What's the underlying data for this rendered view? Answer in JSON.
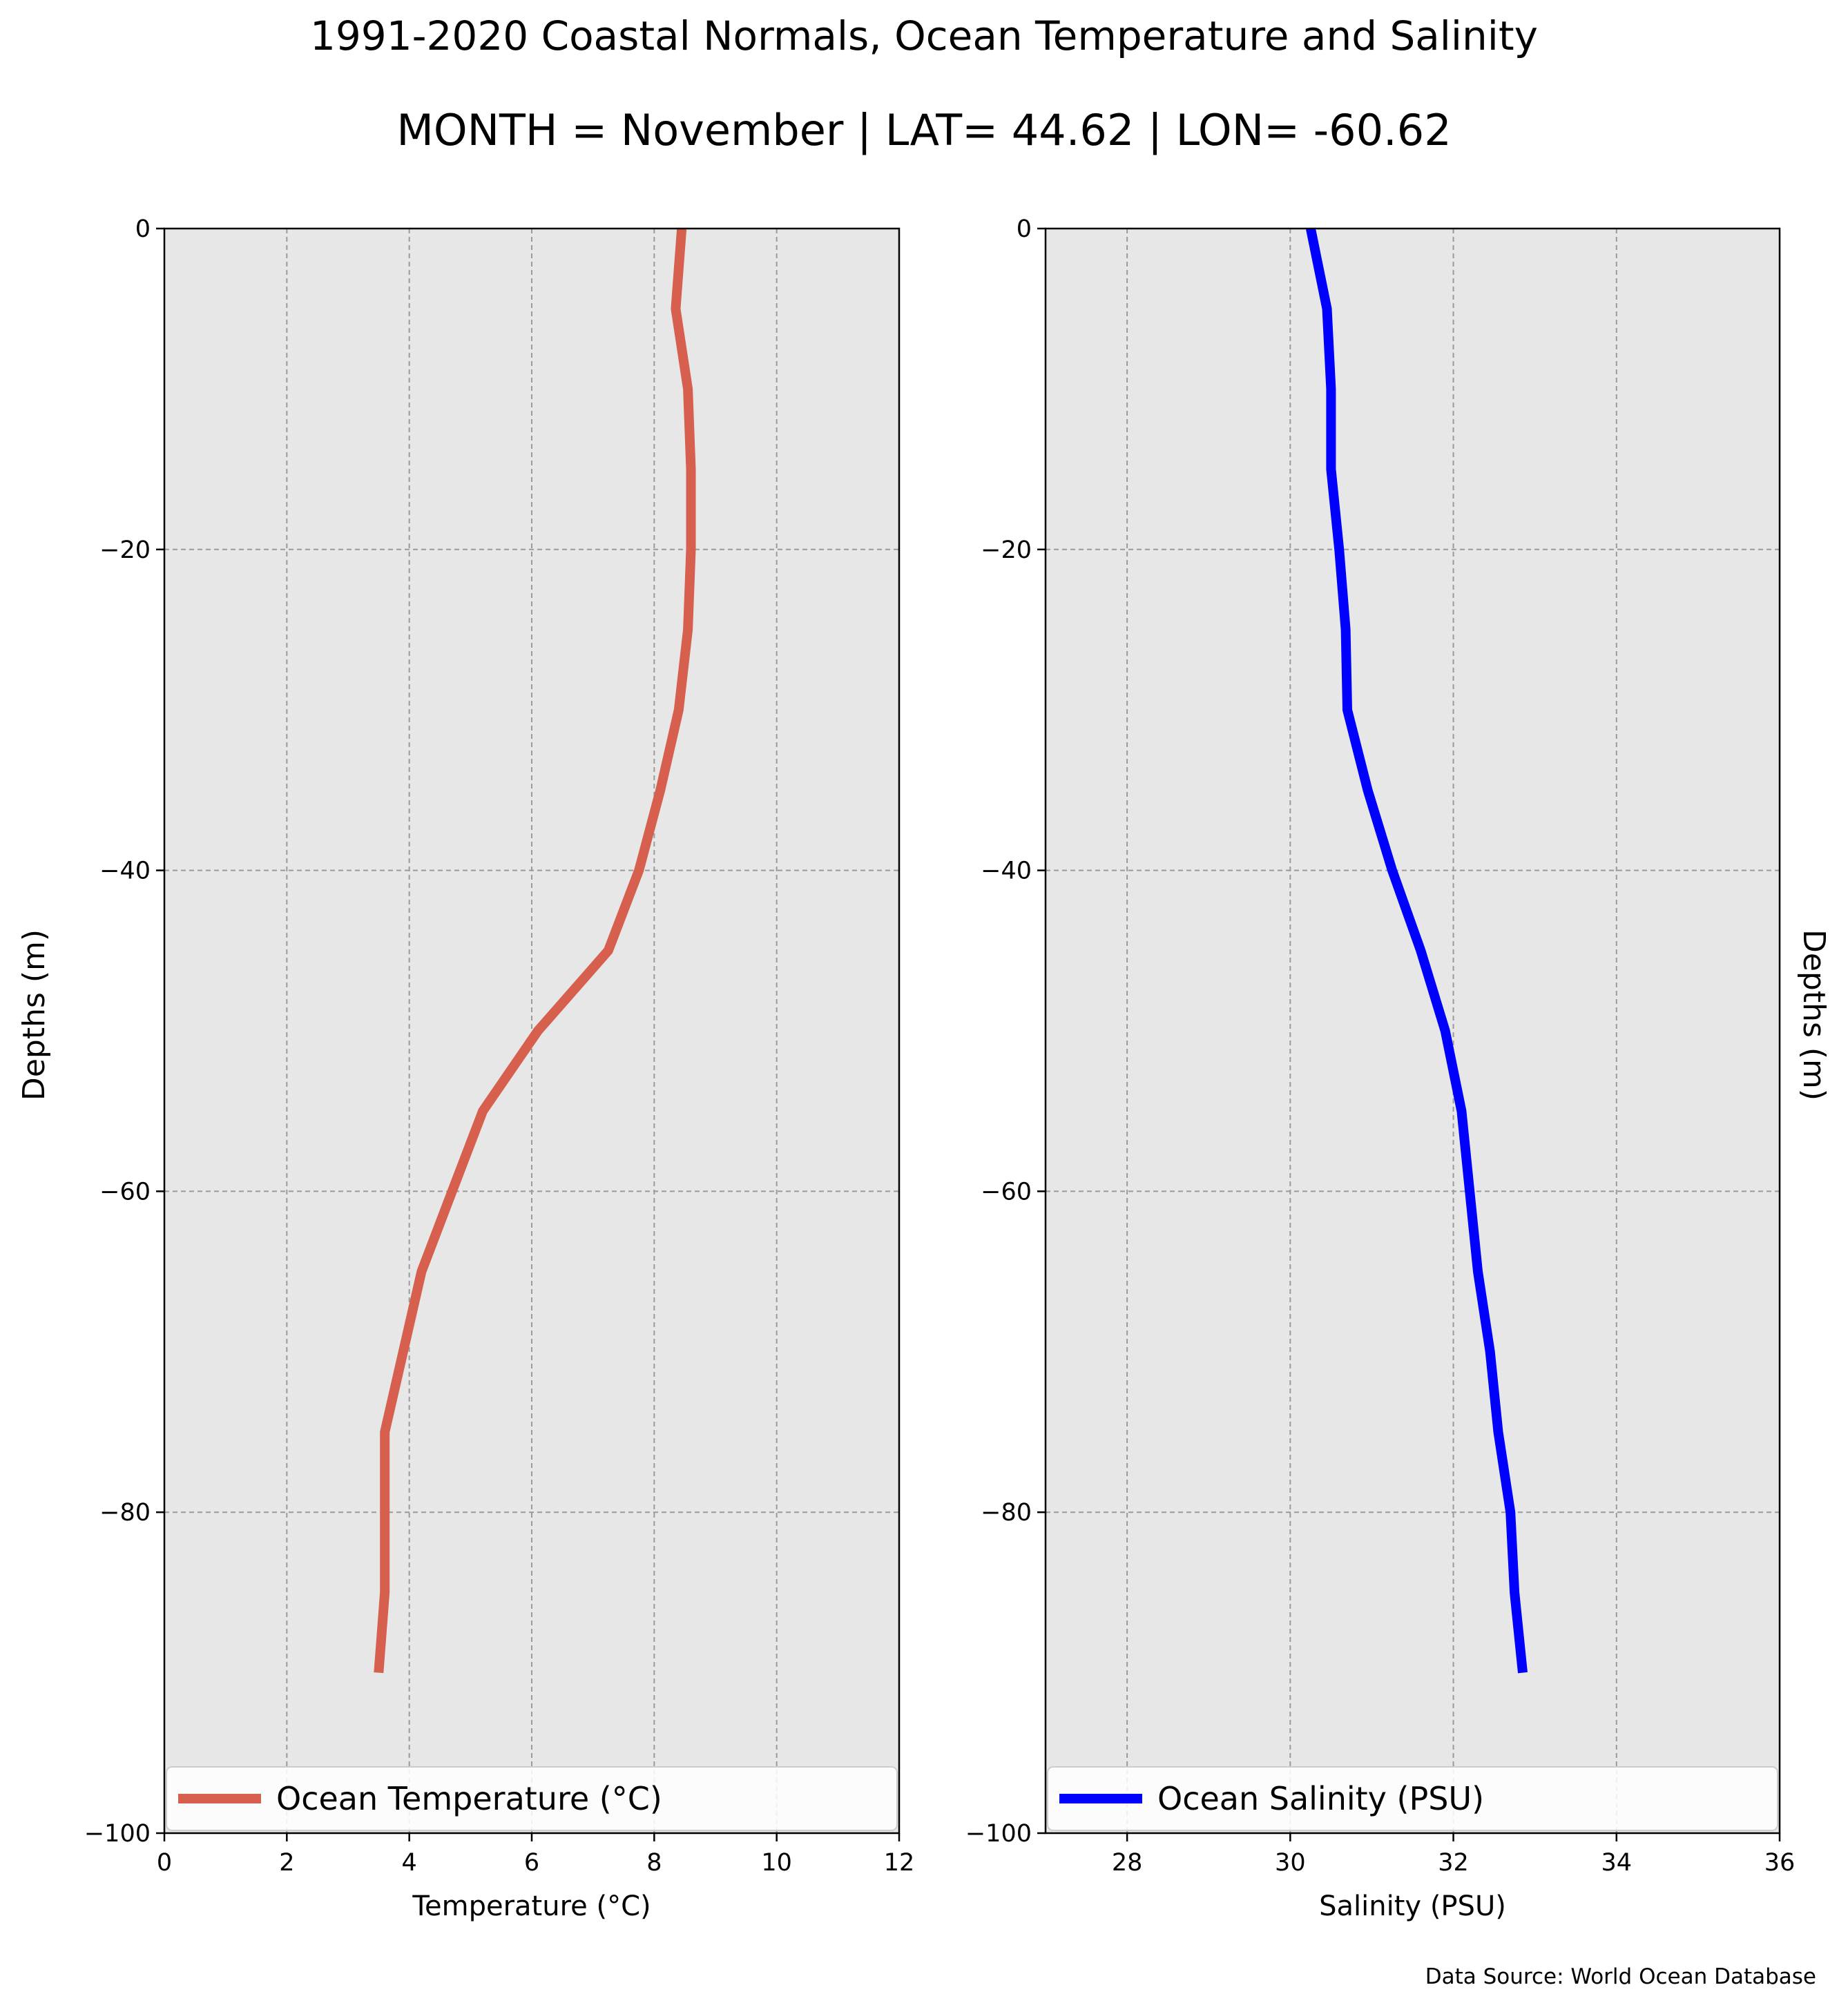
{
  "title": "1991-2020 Coastal Normals, Ocean Temperature and Salinity",
  "subtitle": "MONTH = November | LAT= 44.62 | LON= -60.62",
  "source": "Data Source: World Ocean Database",
  "chart_data": [
    {
      "type": "line",
      "xlabel": "Temperature (°C)",
      "ylabel": "Depths (m)",
      "xlim": [
        0,
        12
      ],
      "ylim": [
        -100,
        0
      ],
      "xticks": [
        0,
        2,
        4,
        6,
        8,
        10,
        12
      ],
      "yticks": [
        0,
        -20,
        -40,
        -60,
        -80,
        -100
      ],
      "grid": true,
      "legend_position": "lower-center",
      "background": "#e7e7e7",
      "series": [
        {
          "name": "Ocean Temperature (°C)",
          "color": "#d65f4e",
          "x": [
            8.45,
            8.35,
            8.55,
            8.6,
            8.6,
            8.55,
            8.4,
            8.1,
            7.75,
            7.25,
            6.1,
            5.2,
            4.7,
            4.2,
            3.9,
            3.6,
            3.6,
            3.6,
            3.5
          ],
          "y": [
            0,
            -5,
            -10,
            -15,
            -20,
            -25,
            -30,
            -35,
            -40,
            -45,
            -50,
            -55,
            -60,
            -65,
            -70,
            -75,
            -80,
            -85,
            -90
          ]
        }
      ]
    },
    {
      "type": "line",
      "xlabel": "Salinity (PSU)",
      "ylabel": "Depths (m)",
      "xlim": [
        27,
        36
      ],
      "ylim": [
        -100,
        0
      ],
      "xticks": [
        28,
        30,
        32,
        34,
        36
      ],
      "yticks": [
        0,
        -20,
        -40,
        -60,
        -80,
        -100
      ],
      "grid": true,
      "legend_position": "lower-center",
      "background": "#e7e7e7",
      "series": [
        {
          "name": "Ocean Salinity (PSU)",
          "color": "#0000ff",
          "x": [
            30.25,
            30.45,
            30.5,
            30.5,
            30.6,
            30.68,
            30.7,
            30.95,
            31.25,
            31.6,
            31.9,
            32.1,
            32.2,
            32.3,
            32.45,
            32.55,
            32.7,
            32.75,
            32.85
          ],
          "y": [
            0,
            -5,
            -10,
            -15,
            -20,
            -25,
            -30,
            -35,
            -40,
            -45,
            -50,
            -55,
            -60,
            -65,
            -70,
            -75,
            -80,
            -85,
            -90
          ]
        }
      ]
    }
  ]
}
